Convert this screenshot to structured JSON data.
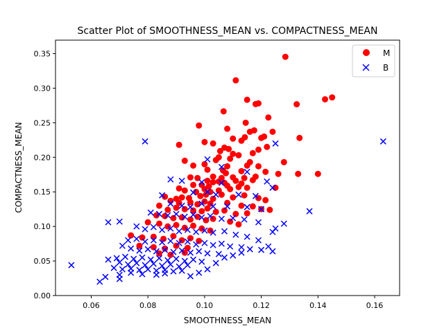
{
  "chart_data": {
    "type": "scatter",
    "title": "Scatter Plot of SMOOTHNESS_MEAN vs. COMPACTNESS_MEAN",
    "xlabel": "SMOOTHNESS_MEAN",
    "ylabel": "COMPACTNESS_MEAN",
    "xlim": [
      0.0474,
      0.1688
    ],
    "ylim": [
      0.0,
      0.3695
    ],
    "xticks": [
      {
        "value": 0.06,
        "label": "0.06"
      },
      {
        "value": 0.08,
        "label": "0.08"
      },
      {
        "value": 0.1,
        "label": "0.10"
      },
      {
        "value": 0.12,
        "label": "0.12"
      },
      {
        "value": 0.14,
        "label": "0.14"
      },
      {
        "value": 0.16,
        "label": "0.16"
      }
    ],
    "yticks": [
      {
        "value": 0.0,
        "label": "0.00"
      },
      {
        "value": 0.05,
        "label": "0.05"
      },
      {
        "value": 0.1,
        "label": "0.10"
      },
      {
        "value": 0.15,
        "label": "0.15"
      },
      {
        "value": 0.2,
        "label": "0.20"
      },
      {
        "value": 0.25,
        "label": "0.25"
      },
      {
        "value": 0.3,
        "label": "0.30"
      },
      {
        "value": 0.35,
        "label": "0.35"
      }
    ],
    "grid": false,
    "legend_position": "top-right",
    "series": [
      {
        "name": "M",
        "marker": "circle",
        "color": "#ff0000",
        "points": [
          [
            0.1285,
            0.3454
          ],
          [
            0.111,
            0.3114
          ],
          [
            0.145,
            0.2867
          ],
          [
            0.1425,
            0.2839
          ],
          [
            0.115,
            0.2832
          ],
          [
            0.119,
            0.278
          ],
          [
            0.118,
            0.277
          ],
          [
            0.1325,
            0.2768
          ],
          [
            0.1067,
            0.2665
          ],
          [
            0.1225,
            0.2576
          ],
          [
            0.1145,
            0.25
          ],
          [
            0.098,
            0.246
          ],
          [
            0.1175,
            0.239
          ],
          [
            0.108,
            0.2413
          ],
          [
            0.116,
            0.237
          ],
          [
            0.124,
            0.237
          ],
          [
            0.121,
            0.23
          ],
          [
            0.12,
            0.228
          ],
          [
            0.1335,
            0.228
          ],
          [
            0.1142,
            0.229
          ],
          [
            0.113,
            0.224
          ],
          [
            0.11,
            0.227
          ],
          [
            0.103,
            0.22
          ],
          [
            0.091,
            0.218
          ],
          [
            0.1,
            0.222
          ],
          [
            0.107,
            0.214
          ],
          [
            0.1085,
            0.212
          ],
          [
            0.119,
            0.211
          ],
          [
            0.122,
            0.215
          ],
          [
            0.1055,
            0.209
          ],
          [
            0.11,
            0.205
          ],
          [
            0.117,
            0.206
          ],
          [
            0.105,
            0.2
          ],
          [
            0.112,
            0.203
          ],
          [
            0.104,
            0.196
          ],
          [
            0.109,
            0.198
          ],
          [
            0.093,
            0.195
          ],
          [
            0.128,
            0.193
          ],
          [
            0.116,
            0.193
          ],
          [
            0.096,
            0.188
          ],
          [
            0.1,
            0.19
          ],
          [
            0.108,
            0.187
          ],
          [
            0.115,
            0.188
          ],
          [
            0.119,
            0.187
          ],
          [
            0.101,
            0.182
          ],
          [
            0.113,
            0.18
          ],
          [
            0.1215,
            0.179
          ],
          [
            0.1065,
            0.181
          ],
          [
            0.1075,
            0.177
          ],
          [
            0.126,
            0.176
          ],
          [
            0.133,
            0.176
          ],
          [
            0.14,
            0.176
          ],
          [
            0.095,
            0.171
          ],
          [
            0.0975,
            0.17
          ],
          [
            0.103,
            0.172
          ],
          [
            0.106,
            0.17
          ],
          [
            0.11,
            0.171
          ],
          [
            0.114,
            0.17
          ],
          [
            0.118,
            0.172
          ],
          [
            0.101,
            0.166
          ],
          [
            0.103,
            0.164
          ],
          [
            0.105,
            0.165
          ],
          [
            0.107,
            0.163
          ],
          [
            0.111,
            0.166
          ],
          [
            0.113,
            0.162
          ],
          [
            0.117,
            0.167
          ],
          [
            0.096,
            0.16
          ],
          [
            0.099,
            0.16
          ],
          [
            0.1015,
            0.158
          ],
          [
            0.108,
            0.159
          ],
          [
            0.112,
            0.157
          ],
          [
            0.125,
            0.156
          ],
          [
            0.091,
            0.155
          ],
          [
            0.093,
            0.152
          ],
          [
            0.097,
            0.15
          ],
          [
            0.1,
            0.154
          ],
          [
            0.102,
            0.15
          ],
          [
            0.105,
            0.152
          ],
          [
            0.109,
            0.154
          ],
          [
            0.115,
            0.156
          ],
          [
            0.086,
            0.143
          ],
          [
            0.09,
            0.14
          ],
          [
            0.092,
            0.142
          ],
          [
            0.0945,
            0.141
          ],
          [
            0.0985,
            0.144
          ],
          [
            0.1005,
            0.146
          ],
          [
            0.103,
            0.14
          ],
          [
            0.106,
            0.146
          ],
          [
            0.11,
            0.142
          ],
          [
            0.114,
            0.145
          ],
          [
            0.119,
            0.141
          ],
          [
            0.1215,
            0.138
          ],
          [
            0.088,
            0.137
          ],
          [
            0.091,
            0.134
          ],
          [
            0.095,
            0.135
          ],
          [
            0.0975,
            0.132
          ],
          [
            0.1,
            0.136
          ],
          [
            0.102,
            0.133
          ],
          [
            0.108,
            0.134
          ],
          [
            0.113,
            0.13
          ],
          [
            0.117,
            0.129
          ],
          [
            0.12,
            0.125
          ],
          [
            0.123,
            0.124
          ],
          [
            0.084,
            0.13
          ],
          [
            0.087,
            0.124
          ],
          [
            0.09,
            0.127
          ],
          [
            0.093,
            0.125
          ],
          [
            0.096,
            0.123
          ],
          [
            0.099,
            0.122
          ],
          [
            0.101,
            0.126
          ],
          [
            0.104,
            0.121
          ],
          [
            0.107,
            0.123
          ],
          [
            0.111,
            0.118
          ],
          [
            0.115,
            0.119
          ],
          [
            0.083,
            0.116
          ],
          [
            0.086,
            0.115
          ],
          [
            0.089,
            0.112
          ],
          [
            0.092,
            0.113
          ],
          [
            0.095,
            0.11
          ],
          [
            0.0975,
            0.114
          ],
          [
            0.1005,
            0.109
          ],
          [
            0.103,
            0.111
          ],
          [
            0.109,
            0.107
          ],
          [
            0.112,
            0.103
          ],
          [
            0.08,
            0.106
          ],
          [
            0.084,
            0.104
          ],
          [
            0.087,
            0.1
          ],
          [
            0.09,
            0.102
          ],
          [
            0.093,
            0.098
          ],
          [
            0.096,
            0.101
          ],
          [
            0.099,
            0.097
          ],
          [
            0.102,
            0.094
          ],
          [
            0.074,
            0.087
          ],
          [
            0.078,
            0.084
          ],
          [
            0.082,
            0.085
          ],
          [
            0.0855,
            0.082
          ],
          [
            0.089,
            0.086
          ],
          [
            0.092,
            0.08
          ],
          [
            0.095,
            0.083
          ],
          [
            0.098,
            0.079
          ],
          [
            0.077,
            0.072
          ],
          [
            0.082,
            0.07
          ],
          [
            0.086,
            0.068
          ],
          [
            0.09,
            0.072
          ],
          [
            0.094,
            0.069
          ],
          [
            0.084,
            0.061
          ],
          [
            0.088,
            0.059
          ],
          [
            0.093,
            0.062
          ]
        ]
      },
      {
        "name": "B",
        "marker": "x",
        "color": "#0000ff",
        "points": [
          [
            0.163,
            0.223
          ],
          [
            0.079,
            0.223
          ],
          [
            0.125,
            0.22
          ],
          [
            0.137,
            0.122
          ],
          [
            0.128,
            0.104
          ],
          [
            0.125,
            0.097
          ],
          [
            0.124,
            0.092
          ],
          [
            0.1225,
            0.071
          ],
          [
            0.101,
            0.197
          ],
          [
            0.106,
            0.186
          ],
          [
            0.115,
            0.179
          ],
          [
            0.122,
            0.165
          ],
          [
            0.124,
            0.156
          ],
          [
            0.088,
            0.168
          ],
          [
            0.092,
            0.166
          ],
          [
            0.099,
            0.164
          ],
          [
            0.106,
            0.163
          ],
          [
            0.085,
            0.145
          ],
          [
            0.096,
            0.149
          ],
          [
            0.101,
            0.15
          ],
          [
            0.104,
            0.146
          ],
          [
            0.112,
            0.146
          ],
          [
            0.118,
            0.144
          ],
          [
            0.088,
            0.133
          ],
          [
            0.092,
            0.13
          ],
          [
            0.095,
            0.128
          ],
          [
            0.099,
            0.133
          ],
          [
            0.103,
            0.129
          ],
          [
            0.108,
            0.129
          ],
          [
            0.115,
            0.128
          ],
          [
            0.12,
            0.125
          ],
          [
            0.081,
            0.12
          ],
          [
            0.084,
            0.118
          ],
          [
            0.087,
            0.116
          ],
          [
            0.09,
            0.118
          ],
          [
            0.093,
            0.114
          ],
          [
            0.096,
            0.117
          ],
          [
            0.099,
            0.113
          ],
          [
            0.102,
            0.115
          ],
          [
            0.106,
            0.111
          ],
          [
            0.11,
            0.112
          ],
          [
            0.114,
            0.11
          ],
          [
            0.119,
            0.106
          ],
          [
            0.066,
            0.106
          ],
          [
            0.07,
            0.107
          ],
          [
            0.076,
            0.1
          ],
          [
            0.079,
            0.096
          ],
          [
            0.082,
            0.099
          ],
          [
            0.085,
            0.095
          ],
          [
            0.088,
            0.097
          ],
          [
            0.091,
            0.093
          ],
          [
            0.094,
            0.095
          ],
          [
            0.097,
            0.092
          ],
          [
            0.1,
            0.094
          ],
          [
            0.103,
            0.091
          ],
          [
            0.107,
            0.093
          ],
          [
            0.111,
            0.088
          ],
          [
            0.115,
            0.085
          ],
          [
            0.119,
            0.08
          ],
          [
            0.073,
            0.08
          ],
          [
            0.076,
            0.082
          ],
          [
            0.079,
            0.078
          ],
          [
            0.082,
            0.08
          ],
          [
            0.085,
            0.077
          ],
          [
            0.088,
            0.079
          ],
          [
            0.091,
            0.076
          ],
          [
            0.094,
            0.078
          ],
          [
            0.097,
            0.074
          ],
          [
            0.1,
            0.076
          ],
          [
            0.103,
            0.073
          ],
          [
            0.106,
            0.075
          ],
          [
            0.109,
            0.071
          ],
          [
            0.113,
            0.07
          ],
          [
            0.071,
            0.072
          ],
          [
            0.074,
            0.068
          ],
          [
            0.077,
            0.065
          ],
          [
            0.08,
            0.067
          ],
          [
            0.083,
            0.064
          ],
          [
            0.086,
            0.066
          ],
          [
            0.089,
            0.063
          ],
          [
            0.092,
            0.065
          ],
          [
            0.095,
            0.062
          ],
          [
            0.098,
            0.064
          ],
          [
            0.101,
            0.061
          ],
          [
            0.105,
            0.06
          ],
          [
            0.066,
            0.052
          ],
          [
            0.069,
            0.054
          ],
          [
            0.072,
            0.056
          ],
          [
            0.075,
            0.053
          ],
          [
            0.078,
            0.055
          ],
          [
            0.081,
            0.052
          ],
          [
            0.084,
            0.054
          ],
          [
            0.087,
            0.051
          ],
          [
            0.09,
            0.053
          ],
          [
            0.093,
            0.05
          ],
          [
            0.096,
            0.052
          ],
          [
            0.099,
            0.049
          ],
          [
            0.07,
            0.048
          ],
          [
            0.073,
            0.045
          ],
          [
            0.076,
            0.047
          ],
          [
            0.079,
            0.044
          ],
          [
            0.082,
            0.046
          ],
          [
            0.085,
            0.043
          ],
          [
            0.088,
            0.045
          ],
          [
            0.091,
            0.042
          ],
          [
            0.094,
            0.044
          ],
          [
            0.068,
            0.04
          ],
          [
            0.071,
            0.038
          ],
          [
            0.074,
            0.039
          ],
          [
            0.077,
            0.037
          ],
          [
            0.08,
            0.038
          ],
          [
            0.083,
            0.036
          ],
          [
            0.086,
            0.037
          ],
          [
            0.089,
            0.035
          ],
          [
            0.092,
            0.036
          ],
          [
            0.053,
            0.044
          ],
          [
            0.065,
            0.027
          ],
          [
            0.063,
            0.02
          ],
          [
            0.07,
            0.024
          ],
          [
            0.07,
            0.03
          ],
          [
            0.086,
            0.032
          ],
          [
            0.074,
            0.033
          ],
          [
            0.078,
            0.031
          ],
          [
            0.083,
            0.03
          ],
          [
            0.095,
            0.028
          ],
          [
            0.098,
            0.033
          ],
          [
            0.101,
            0.038
          ],
          [
            0.104,
            0.047
          ],
          [
            0.107,
            0.055
          ],
          [
            0.11,
            0.058
          ],
          [
            0.113,
            0.062
          ],
          [
            0.116,
            0.067
          ],
          [
            0.12,
            0.066
          ],
          [
            0.124,
            0.064
          ]
        ]
      }
    ]
  }
}
